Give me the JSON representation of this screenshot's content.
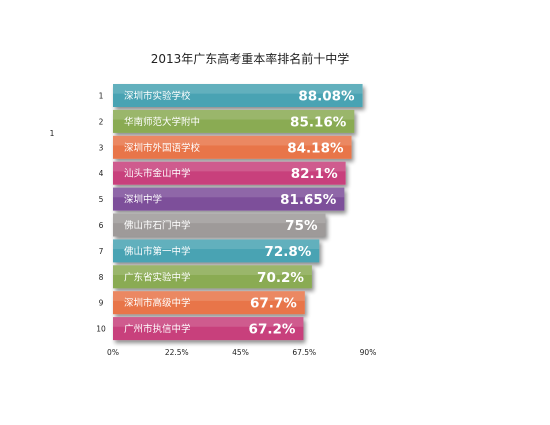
{
  "side_note": "1",
  "chart_data": {
    "type": "bar",
    "orientation": "horizontal",
    "title": "2013年广东高考重本率排名前十中学",
    "xlabel": "",
    "ylabel": "",
    "xlim": [
      0,
      90
    ],
    "x_ticks": [
      "0%",
      "22.5%",
      "45%",
      "67.5%",
      "90%"
    ],
    "grid": false,
    "ranks": [
      "1",
      "2",
      "3",
      "4",
      "5",
      "6",
      "7",
      "8",
      "9",
      "10"
    ],
    "categories": [
      "深圳市实验学校",
      "华南师范大学附中",
      "深圳市外国语学校",
      "汕头市金山中学",
      "深圳中学",
      "佛山市石门中学",
      "佛山市第一中学",
      "广东省实验中学",
      "深圳市高级中学",
      "广州市执信中学"
    ],
    "values": [
      88.08,
      85.16,
      84.18,
      82.1,
      81.65,
      75,
      72.8,
      70.2,
      67.7,
      67.2
    ],
    "value_labels": [
      "88.08%",
      "85.16%",
      "84.18%",
      "82.1%",
      "81.65%",
      "75%",
      "72.8%",
      "70.2%",
      "67.7%",
      "67.2%"
    ],
    "colors": [
      "#4aa3b3",
      "#8aab52",
      "#e8744a",
      "#c8407c",
      "#7d4f9a",
      "#9e9a99",
      "#4aa3b3",
      "#8aab52",
      "#e8744a",
      "#c8407c"
    ]
  }
}
